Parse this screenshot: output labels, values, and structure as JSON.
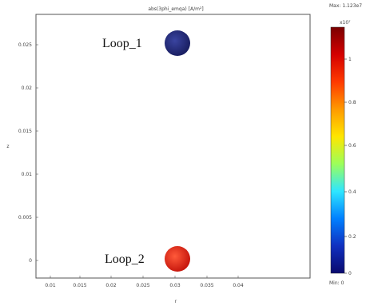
{
  "plot": {
    "title": "abs(3phi_emqa) [A/m²]",
    "xlabel": "r",
    "ylabel": "z",
    "x_ticks": [
      "0.01",
      "0.015",
      "0.02",
      "0.025",
      "0.03",
      "0.035",
      "0.04"
    ],
    "y_ticks": [
      "0.025",
      "0.02",
      "0.015",
      "0.01",
      "0.005",
      "0"
    ],
    "loops": [
      {
        "label": "Loop_1",
        "r": 0.025,
        "z": 0.025,
        "color": "#26307c"
      },
      {
        "label": "Loop_2",
        "r": 0.025,
        "z": 0.0,
        "color": "#e63024"
      }
    ]
  },
  "colorbar": {
    "max_label": "Max: 1.123e7",
    "min_label": "Min: 0",
    "exponent": "x10⁷",
    "ticks": [
      "1",
      "0.8",
      "0.6",
      "0.4",
      "0.2",
      "0"
    ],
    "colors": [
      "#7a0000",
      "#d40000",
      "#ff3a00",
      "#ff9a00",
      "#ffe600",
      "#9cff5a",
      "#2fe6ff",
      "#0080ff",
      "#1030c0",
      "#0a0a6e"
    ]
  }
}
